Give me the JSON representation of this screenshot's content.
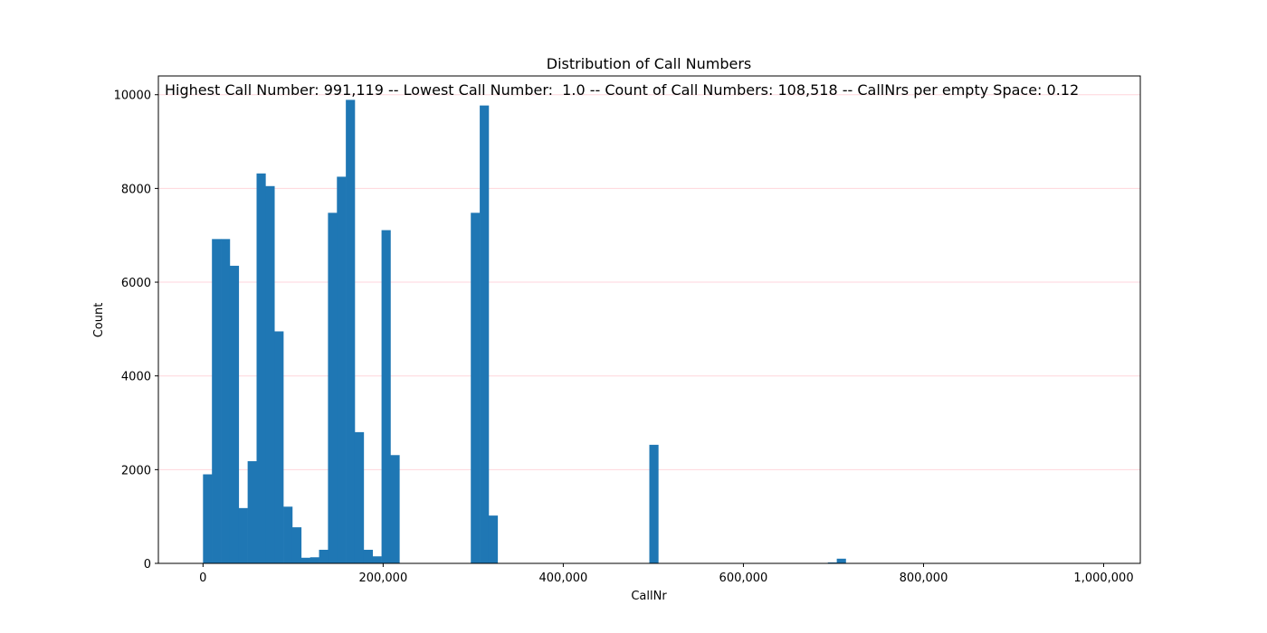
{
  "chart_data": {
    "type": "bar",
    "title": "Distribution of Call Numbers",
    "annotation": "Highest Call Number: 991,119 -- Lowest Call Number:  1.0 -- Count of Call Numbers: 108,518 -- CallNrs per empty Space: 0.12",
    "xlabel": "CallNr",
    "ylabel": "Count",
    "xlim": [
      -49555,
      1040674
    ],
    "ylim": [
      0,
      10400
    ],
    "xticks": [
      0,
      200000,
      400000,
      600000,
      800000,
      1000000
    ],
    "xtick_labels": [
      "0",
      "200,000",
      "400,000",
      "600,000",
      "800,000",
      "1,000,000"
    ],
    "yticks": [
      0,
      2000,
      4000,
      6000,
      8000,
      10000
    ],
    "ytick_labels": [
      "0",
      "2000",
      "4000",
      "6000",
      "8000",
      "10000"
    ],
    "grid": "y",
    "bar_color": "#1f77b4",
    "grid_color": "#ffd6dc",
    "bin_start": 1,
    "bin_width": 9911,
    "counts": [
      1900,
      6920,
      6920,
      6350,
      1180,
      2180,
      8320,
      8050,
      4950,
      1210,
      770,
      120,
      130,
      290,
      7480,
      8250,
      9890,
      2800,
      290,
      150,
      7110,
      2310,
      0,
      0,
      0,
      0,
      0,
      0,
      0,
      0,
      7480,
      9770,
      1020,
      0,
      0,
      0,
      0,
      0,
      0,
      0,
      0,
      0,
      0,
      0,
      0,
      0,
      0,
      0,
      0,
      0,
      2530,
      0,
      0,
      0,
      0,
      0,
      0,
      0,
      0,
      0,
      0,
      0,
      0,
      0,
      0,
      0,
      0,
      0,
      0,
      0,
      20,
      100,
      0,
      0,
      0,
      0,
      0,
      0,
      0,
      0,
      0,
      0,
      0,
      0,
      0,
      0,
      0,
      0,
      0,
      0,
      0,
      0,
      0,
      0,
      0,
      0,
      0,
      0,
      0,
      0
    ]
  }
}
